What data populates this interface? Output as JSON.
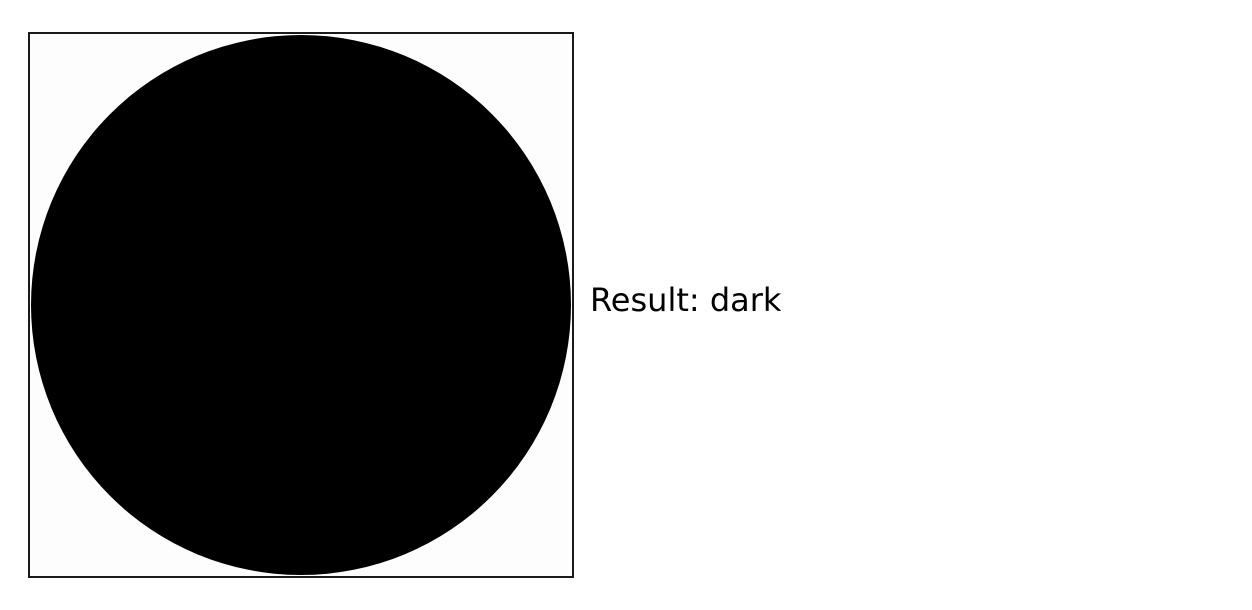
{
  "preview": {
    "shape": "circle",
    "fill_color": "#000000",
    "background_color": "#ffffff",
    "border_color": "#1a1a1a"
  },
  "result": {
    "text": "Result: dark"
  }
}
